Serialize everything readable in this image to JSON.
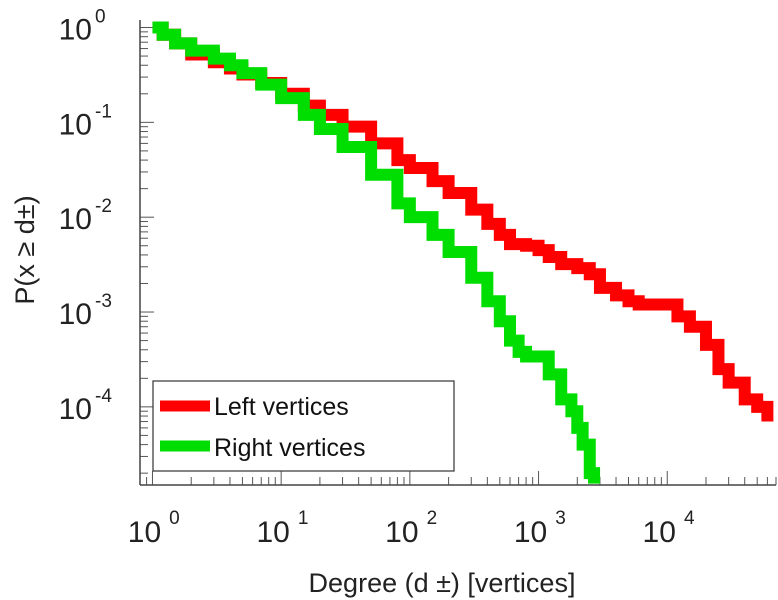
{
  "chart_data": {
    "type": "line",
    "xscale": "log",
    "yscale": "log",
    "xlim": [
      0.8,
      70000
    ],
    "ylim": [
      1.5e-05,
      1.2
    ],
    "xticks": [
      {
        "base": "10",
        "exp": "0",
        "value": 1
      },
      {
        "base": "10",
        "exp": "1",
        "value": 10
      },
      {
        "base": "10",
        "exp": "2",
        "value": 100
      },
      {
        "base": "10",
        "exp": "3",
        "value": 1000
      },
      {
        "base": "10",
        "exp": "4",
        "value": 10000
      }
    ],
    "yticks": [
      {
        "base": "10",
        "exp": "0",
        "value": 1
      },
      {
        "base": "10",
        "exp": "-1",
        "value": 0.1
      },
      {
        "base": "10",
        "exp": "-2",
        "value": 0.01
      },
      {
        "base": "10",
        "exp": "-3",
        "value": 0.001
      },
      {
        "base": "10",
        "exp": "-4",
        "value": 0.0001
      }
    ],
    "xlabel": "Degree (d  ±) [vertices]",
    "ylabel": "P(x ≥ d±)",
    "legend_position": "bottom-left",
    "series": [
      {
        "name": "Left vertices",
        "color": "#ff0000",
        "x": [
          1,
          1.2,
          1.5,
          2,
          3,
          4,
          5,
          7,
          10,
          15,
          20,
          30,
          50,
          80,
          100,
          150,
          200,
          300,
          400,
          500,
          600,
          800,
          1000,
          1200,
          1500,
          2000,
          2500,
          3000,
          4000,
          5000,
          6000,
          8000,
          10000,
          12000,
          15000,
          20000,
          25000,
          30000,
          40000,
          50000,
          60000
        ],
        "y": [
          1.0,
          0.84,
          0.68,
          0.52,
          0.43,
          0.37,
          0.32,
          0.26,
          0.2,
          0.15,
          0.12,
          0.09,
          0.06,
          0.04,
          0.033,
          0.024,
          0.018,
          0.012,
          0.0085,
          0.0065,
          0.0052,
          0.005,
          0.0045,
          0.0038,
          0.0032,
          0.0029,
          0.0025,
          0.0018,
          0.0015,
          0.0013,
          0.0012,
          0.0012,
          0.0012,
          0.0009,
          0.0007,
          0.00045,
          0.00025,
          0.00018,
          0.00012,
          0.0001,
          7e-05
        ]
      },
      {
        "name": "Right vertices",
        "color": "#00dd00",
        "x": [
          1,
          1.2,
          1.5,
          2,
          3,
          4,
          5,
          7,
          10,
          15,
          20,
          30,
          50,
          80,
          100,
          150,
          200,
          300,
          400,
          500,
          600,
          700,
          800,
          1000,
          1200,
          1500,
          1800,
          2000,
          2200,
          2500,
          2700
        ],
        "y": [
          1.0,
          0.84,
          0.68,
          0.57,
          0.47,
          0.4,
          0.33,
          0.25,
          0.18,
          0.12,
          0.085,
          0.055,
          0.028,
          0.014,
          0.01,
          0.0065,
          0.0043,
          0.0023,
          0.0013,
          0.0008,
          0.0005,
          0.00038,
          0.00034,
          0.00034,
          0.00022,
          0.00012,
          9e-05,
          6e-05,
          4e-05,
          2e-05,
          1.55e-05
        ]
      }
    ]
  }
}
